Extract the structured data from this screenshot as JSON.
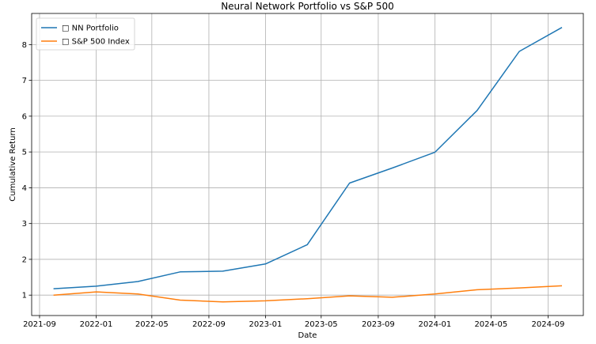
{
  "chart_data": {
    "type": "line",
    "title": "Neural Network Portfolio vs S&P 500",
    "xlabel": "Date",
    "ylabel": "Cumulative Return",
    "x": [
      "2021-10-01",
      "2022-01-01",
      "2022-04-01",
      "2022-07-01",
      "2022-10-01",
      "2023-01-01",
      "2023-04-01",
      "2023-07-01",
      "2023-10-01",
      "2024-01-01",
      "2024-04-01",
      "2024-07-01",
      "2024-10-01"
    ],
    "series": [
      {
        "name": "□ NN Portfolio",
        "color": "#1f77b4",
        "values": [
          1.18,
          1.25,
          1.38,
          1.65,
          1.67,
          1.87,
          2.41,
          4.13,
          4.55,
          4.99,
          6.16,
          7.81,
          8.48
        ]
      },
      {
        "name": "□ S&P 500 Index",
        "color": "#ff7f0e",
        "values": [
          1.0,
          1.09,
          1.03,
          0.86,
          0.81,
          0.84,
          0.9,
          0.98,
          0.94,
          1.03,
          1.15,
          1.2,
          1.26
        ]
      }
    ],
    "x_ticks": [
      "2021-09",
      "2022-01",
      "2022-05",
      "2022-09",
      "2023-01",
      "2023-05",
      "2023-09",
      "2024-01",
      "2024-05",
      "2024-09"
    ],
    "y_ticks": [
      1,
      2,
      3,
      4,
      5,
      6,
      7,
      8
    ],
    "ylim": [
      0.43,
      8.87
    ],
    "xlim": [
      "2021-08-15",
      "2024-11-16"
    ],
    "grid": true,
    "legend_position": "top-left"
  }
}
